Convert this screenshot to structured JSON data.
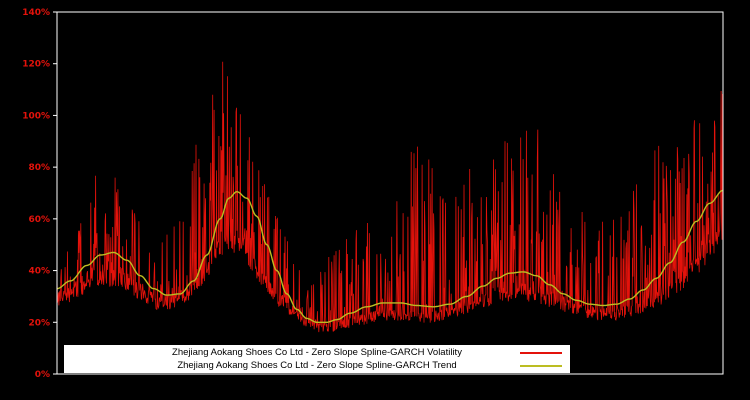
{
  "chart_data": {
    "type": "line",
    "title": "",
    "xlabel": "",
    "ylabel": "",
    "ylim": [
      0,
      140
    ],
    "y_ticks": [
      0,
      20,
      40,
      60,
      80,
      100,
      120,
      140
    ],
    "y_tick_labels": [
      "0%",
      "20%",
      "40%",
      "60%",
      "80%",
      "100%",
      "120%",
      "140%"
    ],
    "x_tick_labels": [],
    "grid": false,
    "legend_position": "bottom-inside",
    "noise_seed": 1337,
    "colors": {
      "background": "#000000",
      "frame": "#ffffff",
      "tick_label": "#e3120b",
      "legend_bg": "#ffffff",
      "legend_text": "#000000"
    },
    "series": [
      {
        "name": "Zhejiang Aokang Shoes Co Ltd - Zero Slope Spline-GARCH Volatility",
        "color": "#e3120b",
        "style": "noisy-spikes",
        "baseline_envelope": [
          [
            0.0,
            27
          ],
          [
            0.03,
            32
          ],
          [
            0.06,
            36
          ],
          [
            0.09,
            37
          ],
          [
            0.12,
            32
          ],
          [
            0.15,
            27
          ],
          [
            0.18,
            27
          ],
          [
            0.21,
            33
          ],
          [
            0.24,
            44
          ],
          [
            0.26,
            50
          ],
          [
            0.28,
            48
          ],
          [
            0.3,
            40
          ],
          [
            0.33,
            29
          ],
          [
            0.36,
            22
          ],
          [
            0.39,
            17.5
          ],
          [
            0.42,
            18
          ],
          [
            0.45,
            20
          ],
          [
            0.48,
            22
          ],
          [
            0.51,
            22.5
          ],
          [
            0.54,
            21.5
          ],
          [
            0.57,
            21.5
          ],
          [
            0.6,
            24
          ],
          [
            0.63,
            27
          ],
          [
            0.66,
            29
          ],
          [
            0.69,
            31
          ],
          [
            0.72,
            30
          ],
          [
            0.75,
            27
          ],
          [
            0.78,
            24.5
          ],
          [
            0.81,
            22.5
          ],
          [
            0.84,
            22.5
          ],
          [
            0.87,
            24.5
          ],
          [
            0.9,
            28
          ],
          [
            0.93,
            33
          ],
          [
            0.96,
            41
          ],
          [
            0.98,
            48
          ],
          [
            1.0,
            55
          ]
        ],
        "spike_envelope": [
          [
            0.0,
            42
          ],
          [
            0.02,
            55
          ],
          [
            0.04,
            68
          ],
          [
            0.06,
            78
          ],
          [
            0.08,
            80
          ],
          [
            0.1,
            72
          ],
          [
            0.12,
            62
          ],
          [
            0.14,
            55
          ],
          [
            0.16,
            52
          ],
          [
            0.18,
            62
          ],
          [
            0.2,
            80
          ],
          [
            0.22,
            100
          ],
          [
            0.235,
            118
          ],
          [
            0.25,
            124
          ],
          [
            0.265,
            112
          ],
          [
            0.28,
            100
          ],
          [
            0.3,
            88
          ],
          [
            0.32,
            68
          ],
          [
            0.34,
            55
          ],
          [
            0.36,
            46
          ],
          [
            0.38,
            42
          ],
          [
            0.4,
            46
          ],
          [
            0.42,
            50
          ],
          [
            0.44,
            55
          ],
          [
            0.46,
            62
          ],
          [
            0.48,
            58
          ],
          [
            0.5,
            66
          ],
          [
            0.52,
            80
          ],
          [
            0.54,
            90
          ],
          [
            0.56,
            86
          ],
          [
            0.58,
            72
          ],
          [
            0.6,
            70
          ],
          [
            0.62,
            80
          ],
          [
            0.64,
            88
          ],
          [
            0.66,
            92
          ],
          [
            0.68,
            96
          ],
          [
            0.7,
            100
          ],
          [
            0.72,
            96
          ],
          [
            0.74,
            82
          ],
          [
            0.76,
            72
          ],
          [
            0.78,
            72
          ],
          [
            0.8,
            62
          ],
          [
            0.82,
            60
          ],
          [
            0.84,
            64
          ],
          [
            0.86,
            70
          ],
          [
            0.88,
            78
          ],
          [
            0.9,
            90
          ],
          [
            0.92,
            110
          ],
          [
            0.935,
            117
          ],
          [
            0.95,
            104
          ],
          [
            0.97,
            110
          ],
          [
            1.0,
            112
          ]
        ]
      },
      {
        "name": "Zhejiang Aokang Shoes Co Ltd - Zero Slope Spline-GARCH Trend",
        "color": "#bcbd22",
        "style": "smooth",
        "points": [
          [
            0.0,
            33
          ],
          [
            0.02,
            36
          ],
          [
            0.045,
            42
          ],
          [
            0.065,
            46
          ],
          [
            0.085,
            47
          ],
          [
            0.105,
            44
          ],
          [
            0.125,
            38
          ],
          [
            0.145,
            33
          ],
          [
            0.165,
            30.5
          ],
          [
            0.185,
            31
          ],
          [
            0.205,
            36
          ],
          [
            0.225,
            46
          ],
          [
            0.245,
            60
          ],
          [
            0.258,
            68
          ],
          [
            0.27,
            70.5
          ],
          [
            0.285,
            68
          ],
          [
            0.3,
            61
          ],
          [
            0.315,
            50
          ],
          [
            0.33,
            40
          ],
          [
            0.345,
            31
          ],
          [
            0.36,
            25
          ],
          [
            0.375,
            21.5
          ],
          [
            0.39,
            20
          ],
          [
            0.405,
            20
          ],
          [
            0.42,
            21
          ],
          [
            0.44,
            23.5
          ],
          [
            0.465,
            26
          ],
          [
            0.49,
            27.5
          ],
          [
            0.515,
            27.5
          ],
          [
            0.54,
            26.5
          ],
          [
            0.565,
            26
          ],
          [
            0.59,
            27
          ],
          [
            0.615,
            30
          ],
          [
            0.64,
            34
          ],
          [
            0.66,
            37
          ],
          [
            0.68,
            39
          ],
          [
            0.7,
            39.5
          ],
          [
            0.72,
            38
          ],
          [
            0.74,
            34.5
          ],
          [
            0.76,
            31
          ],
          [
            0.78,
            28.5
          ],
          [
            0.8,
            27
          ],
          [
            0.82,
            26.5
          ],
          [
            0.84,
            27
          ],
          [
            0.86,
            29
          ],
          [
            0.88,
            32.5
          ],
          [
            0.9,
            37
          ],
          [
            0.92,
            43
          ],
          [
            0.94,
            51
          ],
          [
            0.96,
            59
          ],
          [
            0.98,
            66
          ],
          [
            1.0,
            71
          ]
        ]
      }
    ]
  }
}
